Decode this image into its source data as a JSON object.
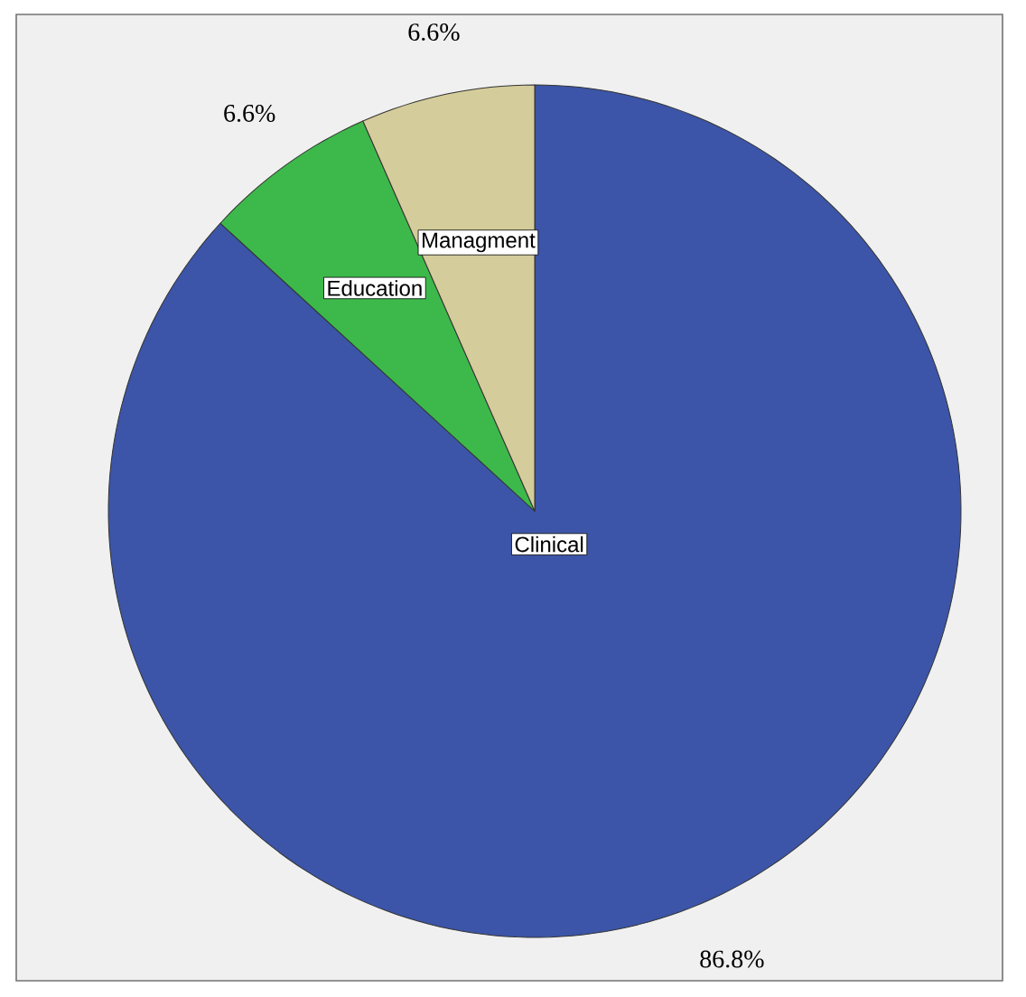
{
  "chart_data": {
    "type": "pie",
    "categories": [
      "Clinical",
      "Education",
      "Managment"
    ],
    "values": [
      86.8,
      6.6,
      6.6
    ],
    "colors": [
      "#3c55a8",
      "#3cb94a",
      "#d4cc9a"
    ],
    "value_labels": [
      "86.8%",
      "6.6%",
      "6.6%"
    ]
  }
}
